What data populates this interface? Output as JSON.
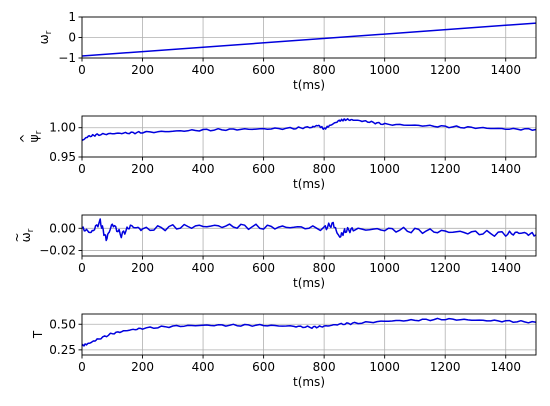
{
  "chart_data": [
    {
      "type": "line",
      "ylabel": "ω",
      "ylabel_sub": "r",
      "ylabel_accent": "",
      "xlabel": "t(ms)",
      "xlim": [
        0,
        1500
      ],
      "ylim": [
        -1,
        1
      ],
      "xticks": [
        0,
        200,
        400,
        600,
        800,
        1000,
        1200,
        1400
      ],
      "xtick_labels": [
        "0",
        "200",
        "400",
        "600",
        "800",
        "1000",
        "1200",
        "1400"
      ],
      "yticks": [
        -1,
        0,
        1
      ],
      "ytick_labels": [
        "−1",
        "0",
        "1"
      ],
      "grid": true,
      "series": [
        {
          "color": "#0000dd",
          "x": [
            0,
            1500
          ],
          "y": [
            -0.9,
            0.7
          ]
        }
      ]
    },
    {
      "type": "line",
      "ylabel": "ψ",
      "ylabel_sub": "r",
      "ylabel_accent": "^",
      "xlabel": "t(ms)",
      "xlim": [
        0,
        1500
      ],
      "ylim": [
        0.95,
        1.02
      ],
      "xticks": [
        0,
        200,
        400,
        600,
        800,
        1000,
        1200,
        1400
      ],
      "xtick_labels": [
        "0",
        "200",
        "400",
        "600",
        "800",
        "1000",
        "1200",
        "1400"
      ],
      "yticks": [
        0.95,
        1.0
      ],
      "ytick_labels": [
        "0.95",
        "1.00"
      ],
      "grid": true,
      "series": [
        {
          "color": "#0000dd",
          "x": [
            0,
            20,
            50,
            100,
            150,
            200,
            300,
            400,
            500,
            600,
            700,
            760,
            780,
            800,
            820,
            850,
            870,
            900,
            950,
            1000,
            1100,
            1200,
            1300,
            1400,
            1500
          ],
          "y": [
            0.978,
            0.985,
            0.988,
            0.99,
            0.991,
            0.992,
            0.994,
            0.996,
            0.997,
            0.998,
            0.999,
            1.001,
            1.004,
            0.998,
            1.004,
            1.012,
            1.014,
            1.013,
            1.01,
            1.006,
            1.004,
            1.002,
            1.0,
            0.998,
            0.997
          ]
        }
      ]
    },
    {
      "type": "line",
      "ylabel": "ω",
      "ylabel_sub": "r",
      "ylabel_accent": "~",
      "xlabel": "t(ms)",
      "xlim": [
        0,
        1500
      ],
      "ylim": [
        -0.025,
        0.012
      ],
      "xticks": [
        0,
        200,
        400,
        600,
        800,
        1000,
        1200,
        1400
      ],
      "xtick_labels": [
        "0",
        "200",
        "400",
        "600",
        "800",
        "1000",
        "1200",
        "1400"
      ],
      "yticks": [
        -0.02,
        0.0
      ],
      "ytick_labels": [
        "−0.02",
        "0.00"
      ],
      "grid": true,
      "series": [
        {
          "color": "#0000dd",
          "x": [
            0,
            30,
            60,
            80,
            100,
            130,
            160,
            200,
            300,
            400,
            500,
            600,
            700,
            800,
            830,
            850,
            870,
            900,
            1000,
            1100,
            1200,
            1300,
            1400,
            1450,
            1500
          ],
          "y": [
            0.0,
            -0.004,
            0.006,
            -0.01,
            0.004,
            -0.006,
            0.002,
            -0.001,
            0.001,
            0.002,
            0.002,
            0.001,
            0.001,
            0.0,
            0.004,
            -0.008,
            -0.002,
            -0.001,
            -0.001,
            -0.002,
            -0.003,
            -0.004,
            -0.005,
            -0.004,
            -0.006
          ]
        }
      ]
    },
    {
      "type": "line",
      "ylabel": "T",
      "ylabel_sub": "",
      "ylabel_accent": "",
      "xlabel": "t(ms)",
      "xlim": [
        0,
        1500
      ],
      "ylim": [
        0.2,
        0.6
      ],
      "xticks": [
        0,
        200,
        400,
        600,
        800,
        1000,
        1200,
        1400
      ],
      "xtick_labels": [
        "0",
        "200",
        "400",
        "600",
        "800",
        "1000",
        "1200",
        "1400"
      ],
      "yticks": [
        0.25,
        0.5
      ],
      "ytick_labels": [
        "0.25",
        "0.50"
      ],
      "grid": true,
      "series": [
        {
          "color": "#0000dd",
          "x": [
            0,
            20,
            50,
            100,
            150,
            200,
            300,
            400,
            500,
            600,
            700,
            760,
            800,
            850,
            900,
            1000,
            1100,
            1200,
            1300,
            1400,
            1500
          ],
          "y": [
            0.29,
            0.31,
            0.35,
            0.41,
            0.44,
            0.46,
            0.48,
            0.49,
            0.49,
            0.49,
            0.48,
            0.47,
            0.48,
            0.5,
            0.51,
            0.53,
            0.54,
            0.55,
            0.54,
            0.53,
            0.52
          ]
        }
      ]
    }
  ]
}
